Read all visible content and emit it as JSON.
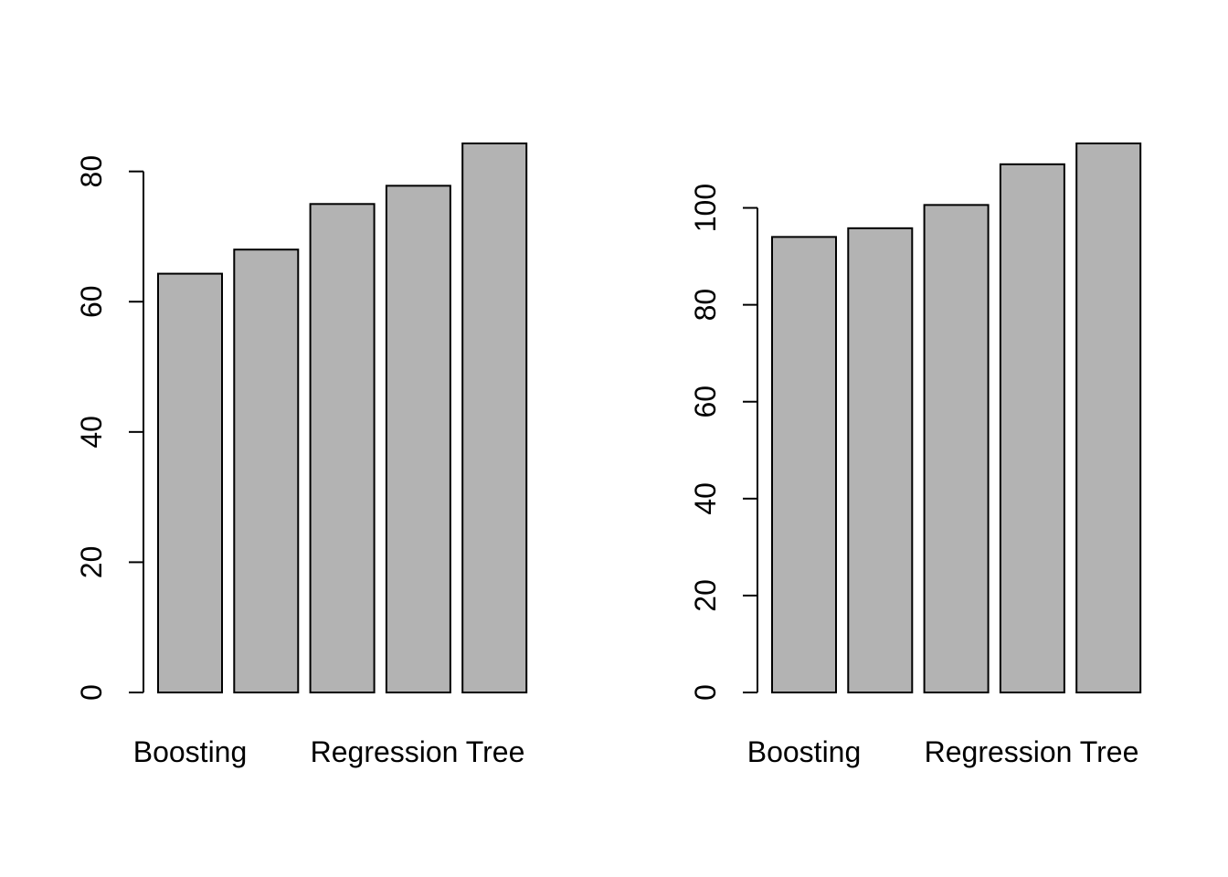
{
  "colors": {
    "bar_fill": "#b3b3b3",
    "bar_stroke": "#000000",
    "axis": "#000000",
    "background": "#ffffff"
  },
  "chart_data": [
    {
      "type": "bar",
      "categories": [
        "Boosting",
        "",
        "",
        "",
        ""
      ],
      "category_labels": [
        "Boosting",
        "Regression Tree"
      ],
      "values": [
        64.3,
        68.0,
        75.0,
        77.8,
        84.3
      ],
      "yticks": [
        0,
        20,
        40,
        60,
        80
      ],
      "ytick_labels": [
        "0",
        "20",
        "40",
        "60",
        "80"
      ],
      "ylim": [
        0,
        84.3
      ],
      "title": "",
      "xlabel": "",
      "ylabel": "",
      "grid": false
    },
    {
      "type": "bar",
      "categories": [
        "Boosting",
        "",
        "",
        "",
        ""
      ],
      "category_labels": [
        "Boosting",
        "Regression Tree"
      ],
      "values": [
        94.0,
        95.8,
        100.6,
        109.0,
        113.3
      ],
      "yticks": [
        0,
        20,
        40,
        60,
        80,
        100
      ],
      "ytick_labels": [
        "0",
        "20",
        "40",
        "60",
        "80",
        "100"
      ],
      "ylim": [
        0,
        113.3
      ],
      "title": "",
      "xlabel": "",
      "ylabel": "",
      "grid": false
    }
  ]
}
